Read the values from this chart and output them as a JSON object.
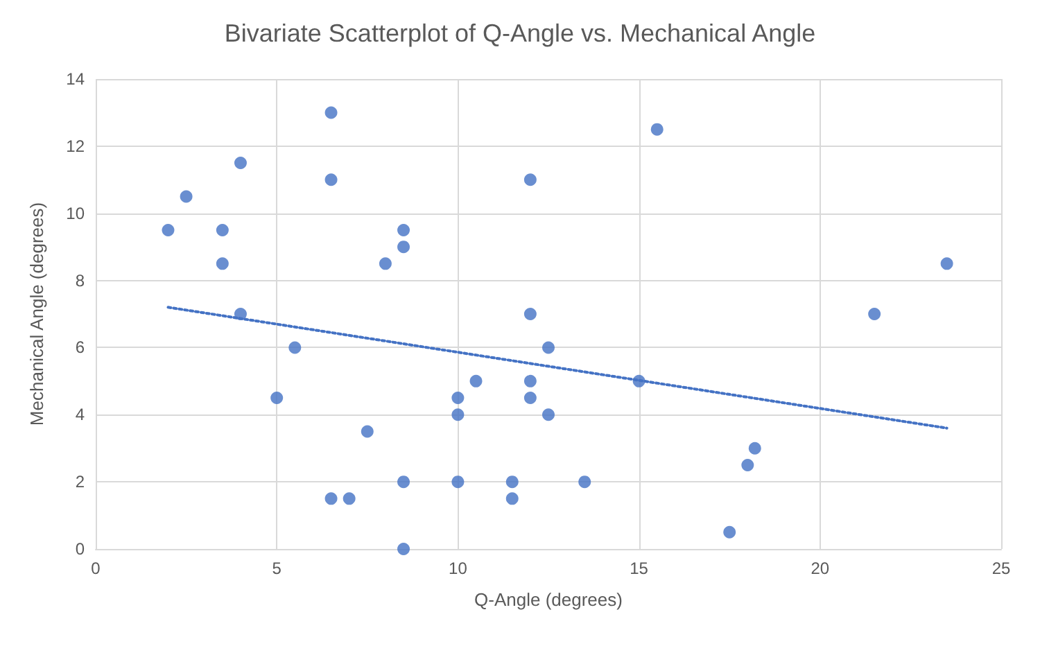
{
  "chart_data": {
    "type": "scatter",
    "title": "Bivariate Scatterplot of Q-Angle vs. Mechanical Angle",
    "xlabel": "Q-Angle (degrees)",
    "ylabel": "Mechanical Angle (degrees)",
    "xlim": [
      0,
      25
    ],
    "xticks": [
      0,
      5,
      10,
      15,
      20,
      25
    ],
    "ylim": [
      0,
      14
    ],
    "yticks": [
      0,
      2,
      4,
      6,
      8,
      10,
      12,
      14
    ],
    "grid": true,
    "marker": "circle",
    "series": [
      {
        "color": "#4472c4",
        "x": [
          6.5,
          4,
          6.5,
          2.5,
          2,
          3.5,
          8.5,
          8.5,
          3.5,
          8,
          12,
          4,
          12,
          5.5,
          12.5,
          10.5,
          12,
          5,
          10,
          12,
          10,
          12.5,
          7.5,
          8.5,
          10,
          11.5,
          6.5,
          7,
          11.5,
          8.5,
          15.5,
          23.5,
          21.5,
          15,
          18.2,
          18,
          13.5,
          17.5
        ],
        "values": [
          13,
          11.5,
          11,
          10.5,
          9.5,
          9.5,
          9.5,
          9,
          8.5,
          8.5,
          11,
          7,
          7,
          6,
          6,
          5,
          5,
          4.5,
          4.5,
          4.5,
          4,
          4,
          3.5,
          2,
          2,
          2,
          1.5,
          1.5,
          1.5,
          0,
          12.5,
          8.5,
          7,
          5,
          3,
          2.5,
          2,
          0.5
        ]
      },
      {
        "type": "line",
        "color": "#4472c4",
        "line_style": "dotted",
        "marker": "none",
        "x": [
          2,
          23.5
        ],
        "values": [
          7.2,
          3.6
        ]
      }
    ]
  }
}
